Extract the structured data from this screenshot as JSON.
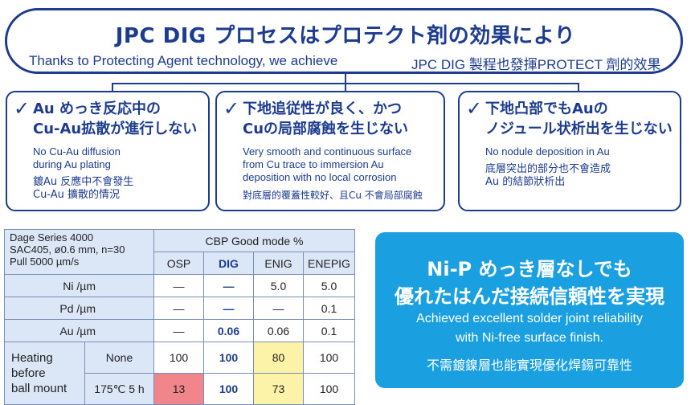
{
  "header": {
    "title_ja": "JPC DIG プロセスはプロテクト剤の効果により",
    "subtitle_en": "Thanks to Protecting Agent technology, we achieve",
    "subtitle_tc": "JPC DIG 製程也發揮PROTECT 劑的效果"
  },
  "cards": [
    {
      "check": "✓",
      "heading_1": "Au めっき反応中の",
      "heading_2": "Cu-Au拡散が進行しない",
      "en_1": "No Cu-Au diffusion",
      "en_2": "during Au plating",
      "tc_1": "鍍Au 反應中不會發生",
      "tc_2": "Cu-Au 擴散的情況"
    },
    {
      "check": "✓",
      "heading_1": "下地追従性が良く、かつ",
      "heading_2": "Cuの局部腐蝕を生じない",
      "en_1": "Very smooth and continuous surface",
      "en_2": "from Cu trace to immersion Au",
      "en_3": "deposition with no local corrosion",
      "tc_1": "對底層的覆蓋性較好、且Cu 不會局部腐蝕"
    },
    {
      "check": "✓",
      "heading_1": "下地凸部でもAuの",
      "heading_2": "ノジュール状析出を生じない",
      "en_1": "No nodule deposition in Au",
      "tc_1": "底層突出的部分也不會造成",
      "tc_2": "Au 的結節狀析出"
    }
  ],
  "table": {
    "spec_1": "Dage Series 4000",
    "spec_2": "SAC405, ø0.6 mm, n=30",
    "spec_3": "Pull 5000 µm/s",
    "group_header": "CBP Good mode %",
    "columns": [
      "OSP",
      "DIG",
      "ENIG",
      "ENEPIG"
    ],
    "rows": [
      {
        "label": "Ni /µm",
        "values": [
          "—",
          "—",
          "5.0",
          "5.0"
        ]
      },
      {
        "label": "Pd /µm",
        "values": [
          "—",
          "—",
          "—",
          "0.1"
        ]
      },
      {
        "label": "Au /µm",
        "values": [
          "—",
          "0.06",
          "0.06",
          "0.1"
        ]
      }
    ],
    "heating_label_1": "Heating",
    "heating_label_2": "before",
    "heating_label_3": "ball mount",
    "heating_rows": [
      {
        "cond": "None",
        "values": [
          "100",
          "100",
          "80",
          "100"
        ]
      },
      {
        "cond": "175℃ 5 h",
        "values": [
          "13",
          "100",
          "73",
          "100"
        ]
      }
    ],
    "highlight_colors": {
      "header": "#dbe6f7",
      "yellow": "#fdf3a8",
      "red": "#f0858b"
    }
  },
  "bluebox": {
    "ja_1": "Ni-P めっき層なしでも",
    "ja_2": "優れたはんだ接続信頼性を実現",
    "en_1": "Achieved excellent solder joint reliability",
    "en_2": "with Ni-free surface finish.",
    "tc_1": "不需鍍鎳層也能實現優化焊錫可靠性",
    "color": "#1aa0e0"
  },
  "colors": {
    "accent": "#1d3c8f"
  }
}
